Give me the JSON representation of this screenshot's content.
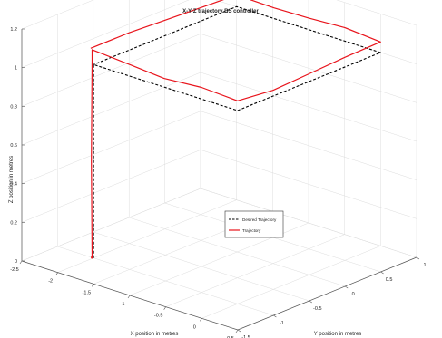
{
  "chart_data": {
    "type": "line",
    "projection": "3d",
    "title": "X-Y-Z trajectory BS controller",
    "xlabel": "X position in metres",
    "ylabel": "Y position in metres",
    "zlabel": "Z position in metres",
    "xlim": [
      -2.5,
      0.5
    ],
    "ylim": [
      -1.5,
      1
    ],
    "zlim": [
      0,
      1.2
    ],
    "x_ticks": [
      "-2.5",
      "-2",
      "-1.5",
      "-1",
      "-0.5",
      "0",
      "0.5"
    ],
    "y_ticks": [
      "-1.5",
      "-1",
      "-0.5",
      "0",
      "0.5",
      "1"
    ],
    "z_ticks": [
      "0",
      "0.2",
      "0.4",
      "0.6",
      "0.8",
      "1",
      "1.2"
    ],
    "grid": true,
    "legend_position": "center",
    "series": [
      {
        "name": "Desired Trajectory",
        "color": "#000000",
        "style": "dashed",
        "points": [
          [
            -2,
            -1,
            0
          ],
          [
            -2,
            -1,
            1
          ],
          [
            0,
            -1,
            1
          ],
          [
            0,
            1,
            1
          ],
          [
            -2,
            1,
            1
          ],
          [
            -2,
            -1,
            1
          ]
        ]
      },
      {
        "name": "Trajectory",
        "color": "#e8141c",
        "style": "solid",
        "points": [
          [
            -2.02,
            -1.0,
            0.0
          ],
          [
            -2.03,
            -1.0,
            0.5
          ],
          [
            -2.04,
            -0.98,
            1.02
          ],
          [
            -2.0,
            -1.02,
            1.08
          ],
          [
            -1.5,
            -1.0,
            1.06
          ],
          [
            -1.0,
            -1.02,
            1.05
          ],
          [
            -0.5,
            -1.0,
            1.06
          ],
          [
            0.0,
            -1.0,
            1.05
          ],
          [
            0.0,
            -0.5,
            1.03
          ],
          [
            0.0,
            0.0,
            1.04
          ],
          [
            0.0,
            0.5,
            1.05
          ],
          [
            0.02,
            0.98,
            1.06
          ],
          [
            -0.5,
            1.0,
            1.07
          ],
          [
            -1.0,
            1.0,
            1.06
          ],
          [
            -1.5,
            1.02,
            1.05
          ],
          [
            -2.0,
            1.0,
            1.06
          ],
          [
            -2.0,
            0.5,
            1.07
          ],
          [
            -2.0,
            0.0,
            1.08
          ],
          [
            -2.0,
            -0.5,
            1.09
          ],
          [
            -2.04,
            -1.0,
            1.08
          ]
        ]
      }
    ]
  }
}
